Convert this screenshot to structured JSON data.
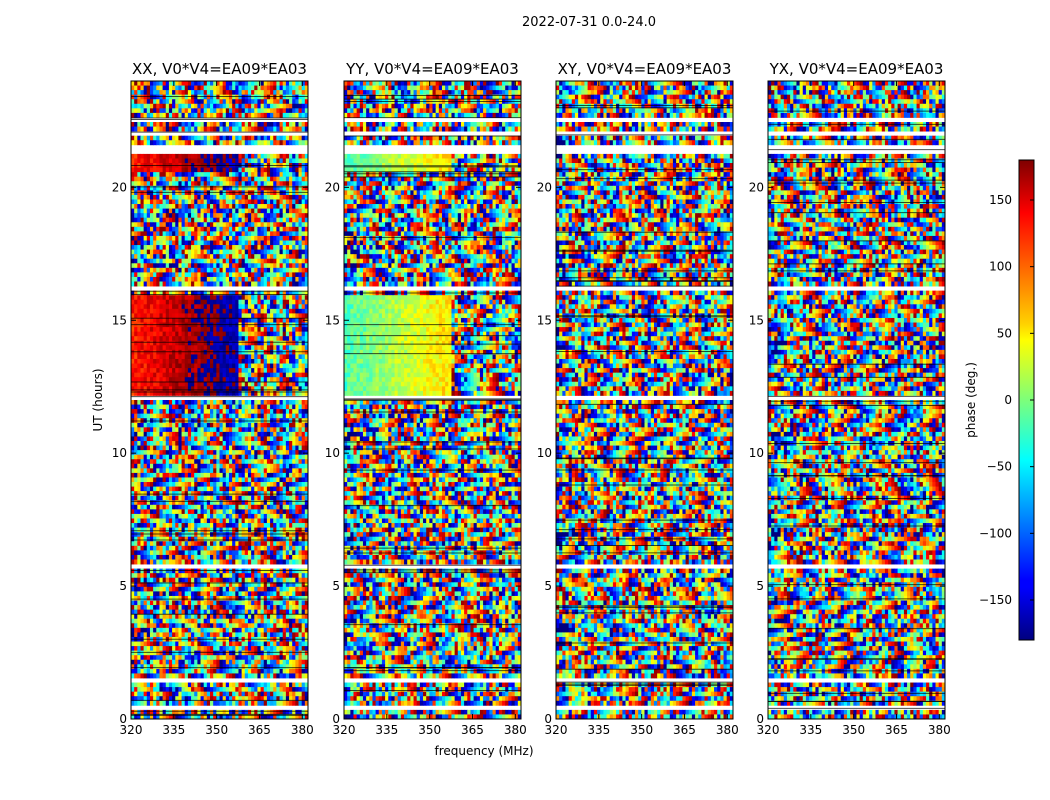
{
  "figure_title": "2022-07-31 0.0-24.0",
  "chart_data": [
    {
      "type": "heatmap",
      "title": "XX, V0*V4=EA09*EA03",
      "xlabel": "frequency (MHz)",
      "ylabel": "UT (hours)",
      "xlim": [
        320,
        382
      ],
      "ylim": [
        0,
        24
      ],
      "xticks": [
        320,
        335,
        350,
        365,
        380
      ],
      "yticks": [
        0,
        5,
        10,
        15,
        20
      ],
      "colormap": "jet",
      "colorbar_label": "phase (deg.)",
      "colorbar_range": [
        -180,
        180
      ],
      "colorbar_ticks": [
        150,
        100,
        50,
        0,
        -50,
        -100,
        -150
      ]
    },
    {
      "type": "heatmap",
      "title": "YY, V0*V4=EA09*EA03",
      "xlabel": "frequency (MHz)",
      "ylabel": "UT (hours)",
      "xlim": [
        320,
        382
      ],
      "ylim": [
        0,
        24
      ],
      "xticks": [
        320,
        335,
        350,
        365,
        380
      ],
      "yticks": [
        0,
        5,
        10,
        15,
        20
      ],
      "colormap": "jet"
    },
    {
      "type": "heatmap",
      "title": "XY, V0*V4=EA09*EA03",
      "xlabel": "frequency (MHz)",
      "ylabel": "UT (hours)",
      "xlim": [
        320,
        382
      ],
      "ylim": [
        0,
        24
      ],
      "xticks": [
        320,
        335,
        350,
        365,
        380
      ],
      "yticks": [
        0,
        5,
        10,
        15,
        20
      ],
      "colormap": "jet"
    },
    {
      "type": "heatmap",
      "title": "YX, V0*V4=EA09*EA03",
      "xlabel": "frequency (MHz)",
      "ylabel": "UT (hours)",
      "xlim": [
        320,
        382
      ],
      "ylim": [
        0,
        24
      ],
      "xticks": [
        320,
        335,
        350,
        365,
        380
      ],
      "yticks": [
        0,
        5,
        10,
        15,
        20
      ],
      "colormap": "jet"
    }
  ],
  "labels": {
    "ylabel": "UT (hours)",
    "xlabel": "frequency (MHz)",
    "colorbar_label": "phase (deg.)",
    "colorbar_ticks": [
      "150",
      "100",
      "50",
      "0",
      "−50",
      "−100",
      "−150"
    ]
  }
}
